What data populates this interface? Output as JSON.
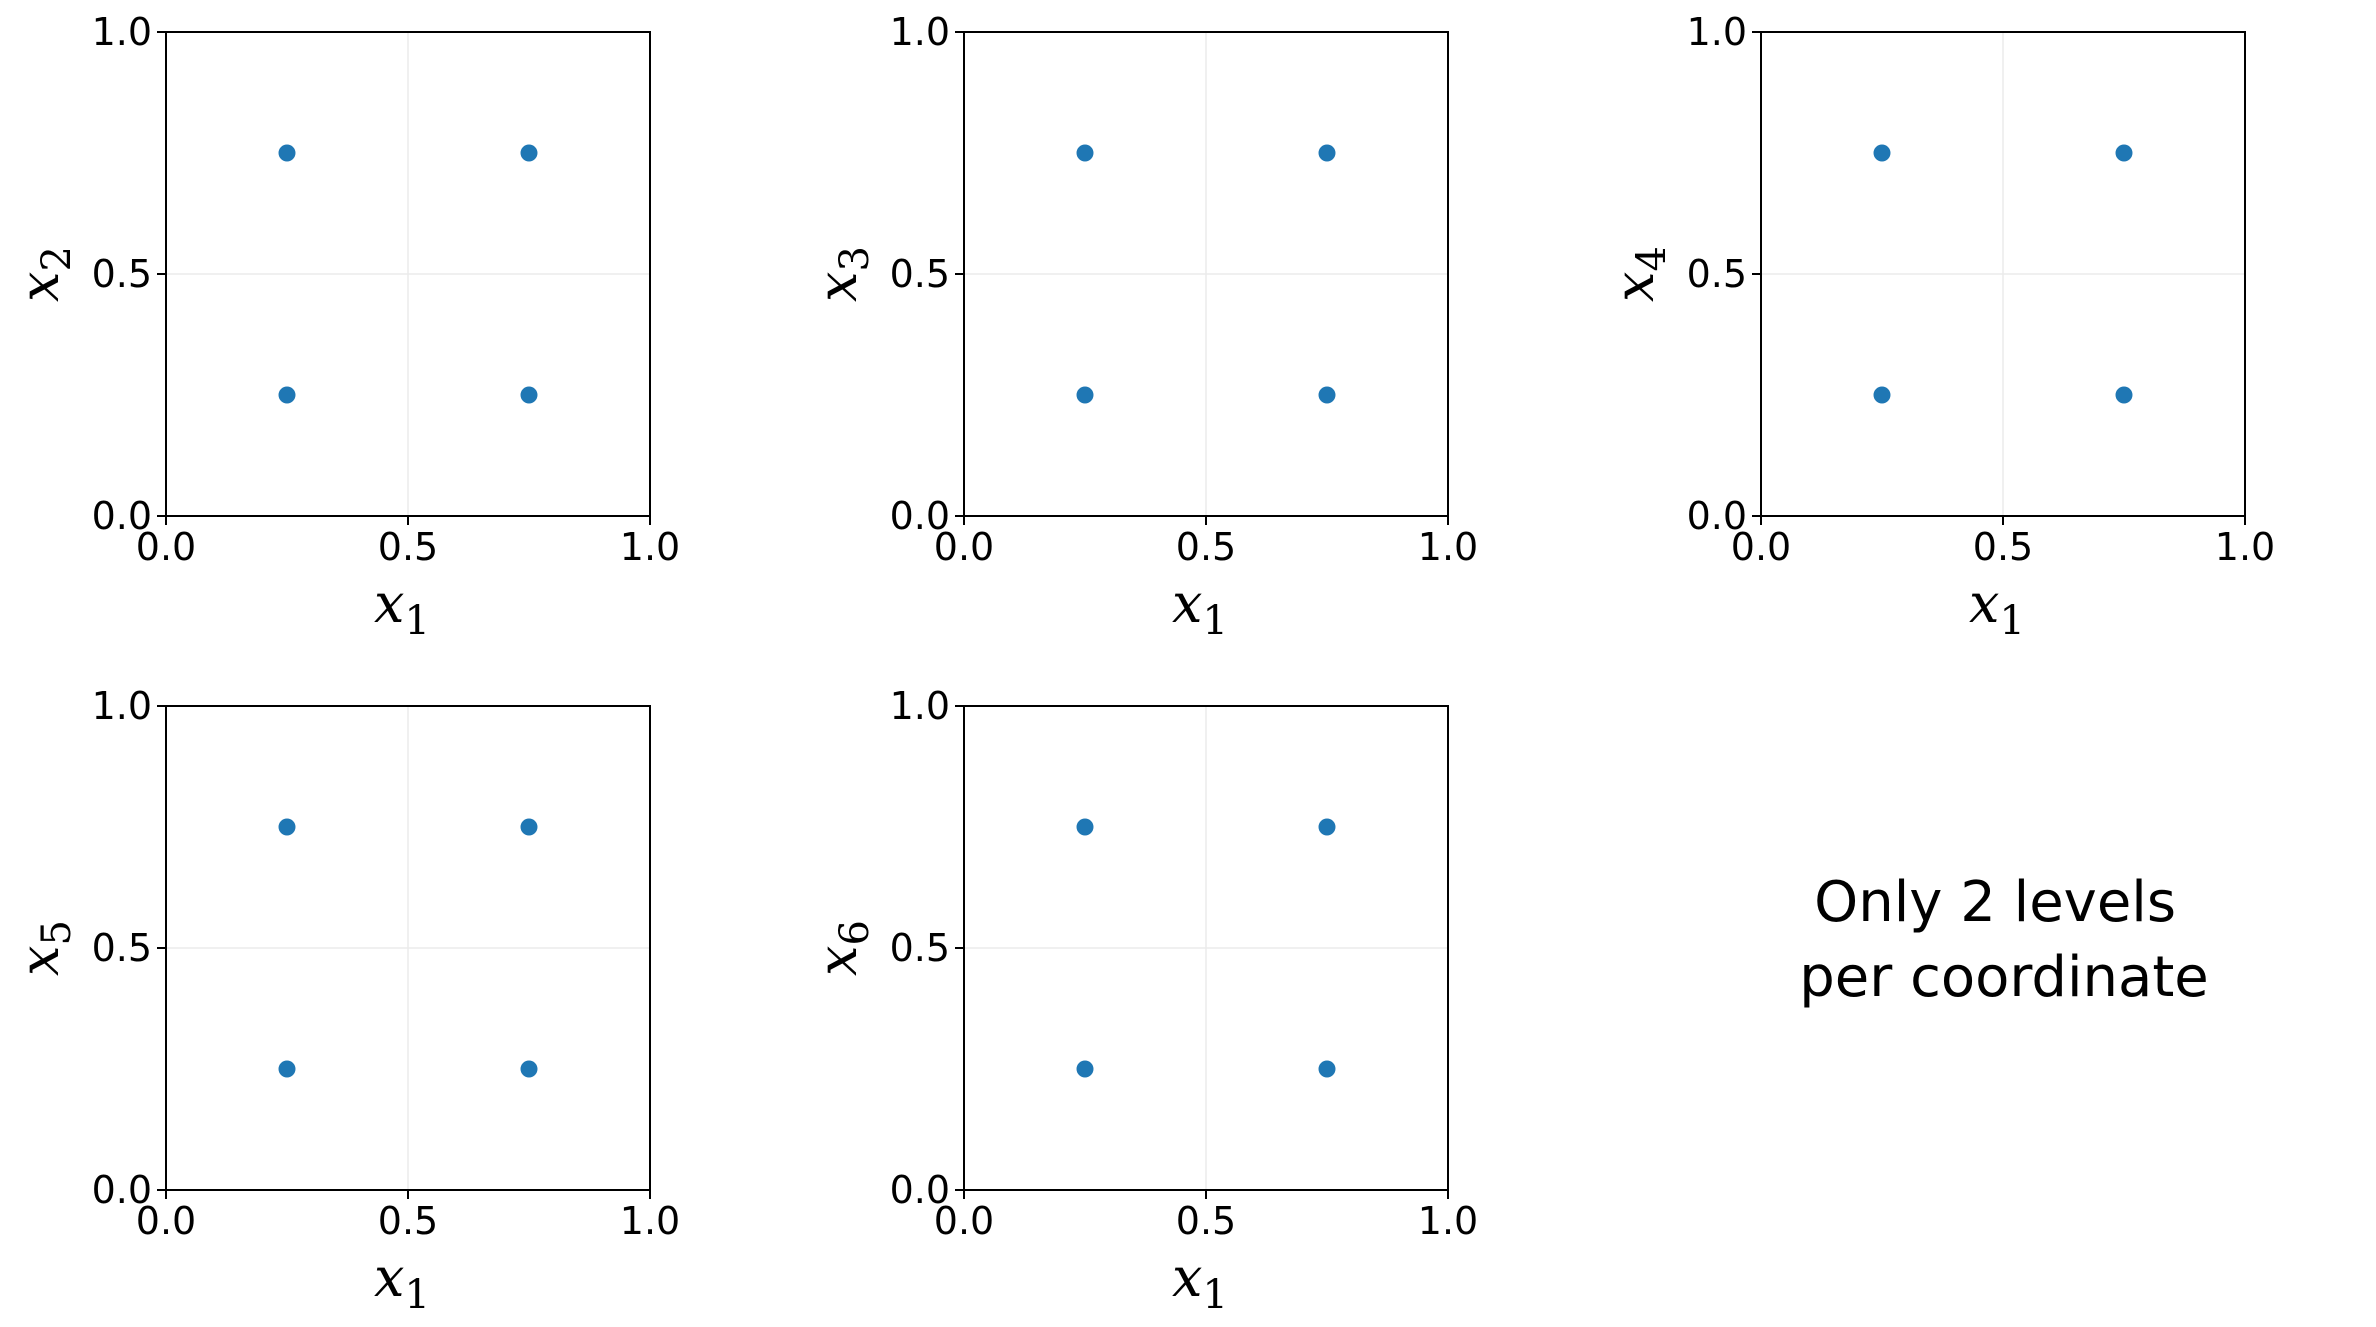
{
  "colors": {
    "marker": "#1f77b4",
    "grid": "#ebebeb",
    "axis": "#000000"
  },
  "chart_data": [
    {
      "type": "scatter",
      "xlabel": "x1",
      "ylabel": "x2",
      "xlim": [
        0,
        1
      ],
      "ylim": [
        0,
        1
      ],
      "xticks": [
        "0.0",
        "0.5",
        "1.0"
      ],
      "yticks": [
        "0.0",
        "0.5",
        "1.0"
      ],
      "grid": true,
      "x": [
        0.25,
        0.75,
        0.25,
        0.75
      ],
      "y": [
        0.75,
        0.75,
        0.25,
        0.25
      ]
    },
    {
      "type": "scatter",
      "xlabel": "x1",
      "ylabel": "x3",
      "xlim": [
        0,
        1
      ],
      "ylim": [
        0,
        1
      ],
      "xticks": [
        "0.0",
        "0.5",
        "1.0"
      ],
      "yticks": [
        "0.0",
        "0.5",
        "1.0"
      ],
      "grid": true,
      "x": [
        0.25,
        0.75,
        0.25,
        0.75
      ],
      "y": [
        0.75,
        0.75,
        0.25,
        0.25
      ]
    },
    {
      "type": "scatter",
      "xlabel": "x1",
      "ylabel": "x4",
      "xlim": [
        0,
        1
      ],
      "ylim": [
        0,
        1
      ],
      "xticks": [
        "0.0",
        "0.5",
        "1.0"
      ],
      "yticks": [
        "0.0",
        "0.5",
        "1.0"
      ],
      "grid": true,
      "x": [
        0.25,
        0.75,
        0.25,
        0.75
      ],
      "y": [
        0.75,
        0.75,
        0.25,
        0.25
      ]
    },
    {
      "type": "scatter",
      "xlabel": "x1",
      "ylabel": "x5",
      "xlim": [
        0,
        1
      ],
      "ylim": [
        0,
        1
      ],
      "xticks": [
        "0.0",
        "0.5",
        "1.0"
      ],
      "yticks": [
        "0.0",
        "0.5",
        "1.0"
      ],
      "grid": true,
      "x": [
        0.25,
        0.75,
        0.25,
        0.75
      ],
      "y": [
        0.75,
        0.75,
        0.25,
        0.25
      ]
    },
    {
      "type": "scatter",
      "xlabel": "x1",
      "ylabel": "x6",
      "xlim": [
        0,
        1
      ],
      "ylim": [
        0,
        1
      ],
      "xticks": [
        "0.0",
        "0.5",
        "1.0"
      ],
      "yticks": [
        "0.0",
        "0.5",
        "1.0"
      ],
      "grid": true,
      "x": [
        0.25,
        0.75,
        0.25,
        0.75
      ],
      "y": [
        0.75,
        0.75,
        0.25,
        0.25
      ]
    }
  ],
  "annotation": {
    "lines": [
      "Only 2 levels",
      "per coordinate"
    ]
  }
}
